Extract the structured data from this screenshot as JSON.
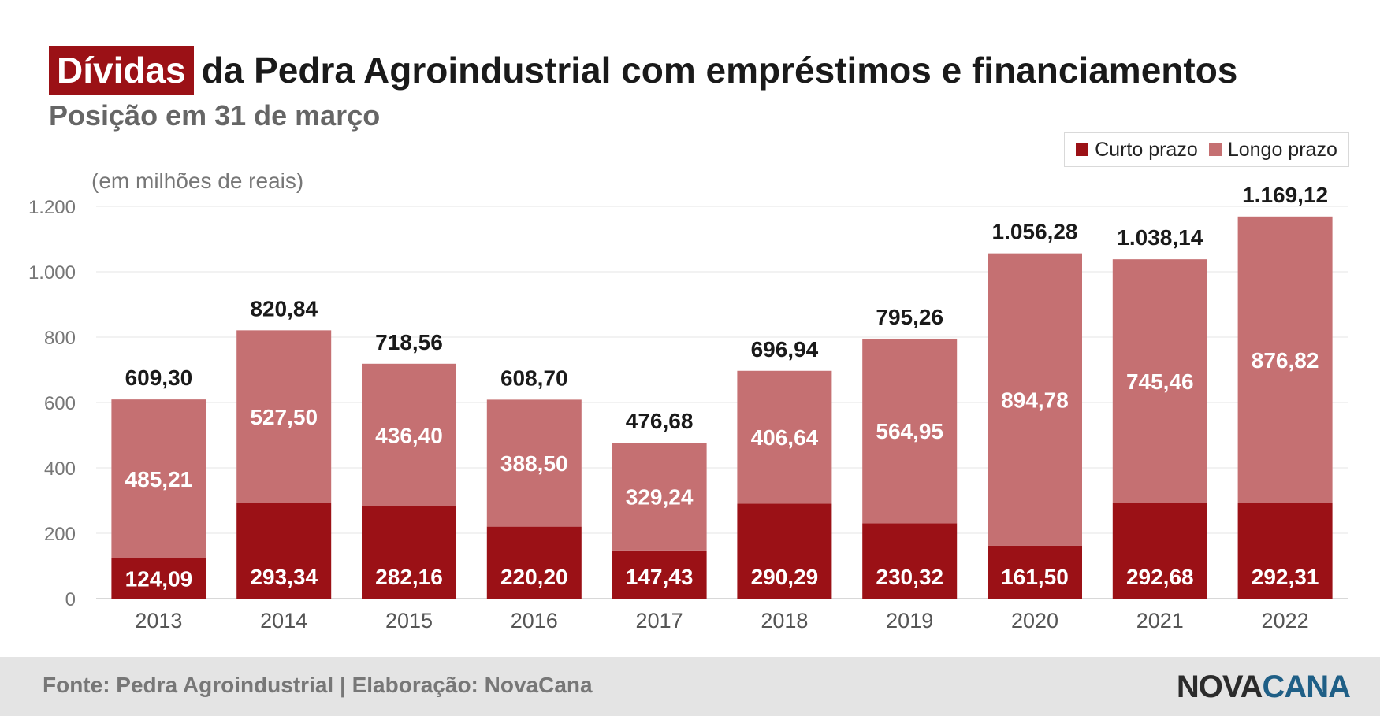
{
  "header": {
    "title_highlight": "Dívidas",
    "title_rest": "da Pedra Agroindustrial com empréstimos e financiamentos",
    "subtitle": "Posição em 31 de março"
  },
  "legend": {
    "items": [
      {
        "label": "Curto prazo",
        "color": "#9b1116"
      },
      {
        "label": "Longo prazo",
        "color": "#c57072"
      }
    ]
  },
  "unit_note": "(em milhões de reais)",
  "footer": {
    "source": "Fonte: Pedra Agroindustrial | Elaboração: NovaCana",
    "logo_part1": "NOVA",
    "logo_part2": "CANA"
  },
  "chart_data": {
    "type": "bar",
    "stacked": true,
    "categories": [
      "2013",
      "2014",
      "2015",
      "2016",
      "2017",
      "2018",
      "2019",
      "2020",
      "2021",
      "2022"
    ],
    "series": [
      {
        "name": "Curto prazo",
        "color": "#9b1116",
        "values": [
          124.09,
          293.34,
          282.16,
          220.2,
          147.43,
          290.29,
          230.32,
          161.5,
          292.68,
          292.31
        ],
        "labels": [
          "124,09",
          "293,34",
          "282,16",
          "220,20",
          "147,43",
          "290,29",
          "230,32",
          "161,50",
          "292,68",
          "292,31"
        ]
      },
      {
        "name": "Longo prazo",
        "color": "#c57072",
        "values": [
          485.21,
          527.5,
          436.4,
          388.5,
          329.24,
          406.64,
          564.95,
          894.78,
          745.46,
          876.82
        ],
        "labels": [
          "485,21",
          "527,50",
          "436,40",
          "388,50",
          "329,24",
          "406,64",
          "564,95",
          "894,78",
          "745,46",
          "876,82"
        ]
      }
    ],
    "totals": [
      609.3,
      820.84,
      718.56,
      608.7,
      476.68,
      696.94,
      795.26,
      1056.28,
      1038.14,
      1169.12
    ],
    "total_labels": [
      "609,30",
      "820,84",
      "718,56",
      "608,70",
      "476,68",
      "696,94",
      "795,26",
      "1.056,28",
      "1.038,14",
      "1.169,12"
    ],
    "ylim": [
      0,
      1200
    ],
    "yticks": [
      0,
      200,
      400,
      600,
      800,
      1000,
      1200
    ],
    "ytick_labels": [
      "0",
      "200",
      "400",
      "600",
      "800",
      "1.000",
      "1.200"
    ],
    "grid": true,
    "legend_position": "top-right"
  }
}
